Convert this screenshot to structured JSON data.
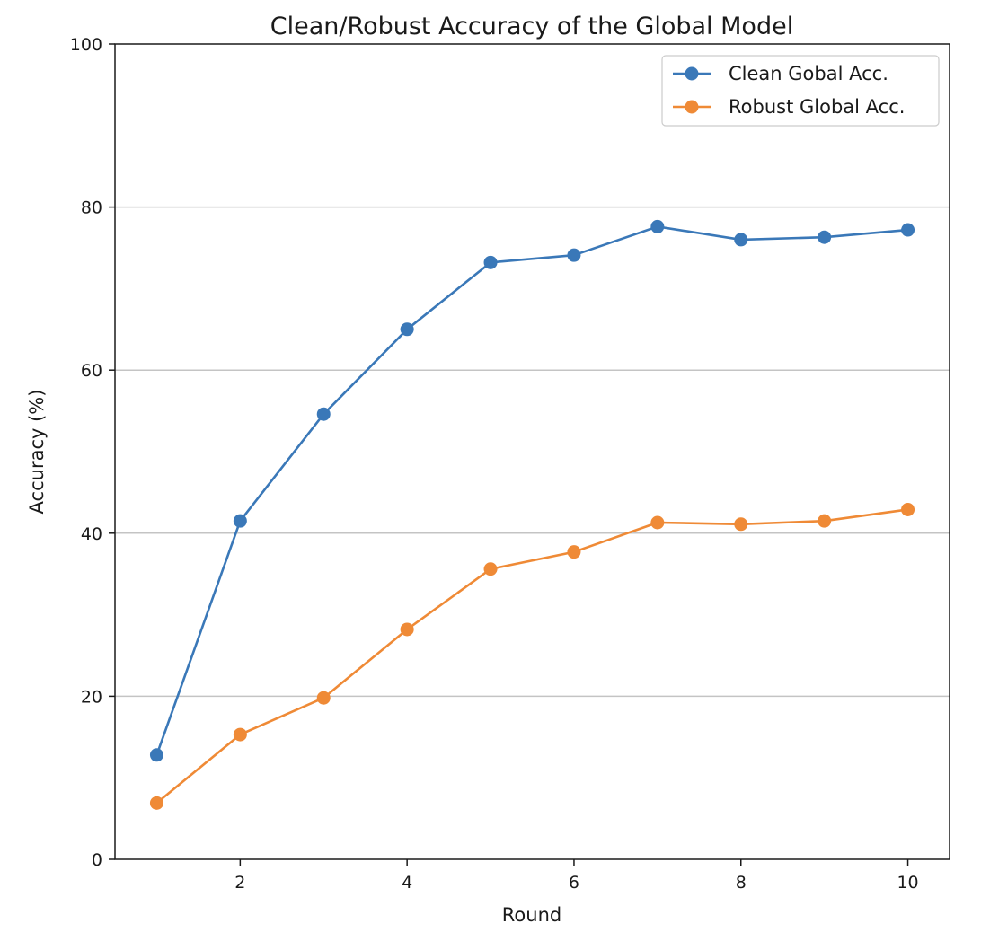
{
  "chart_data": {
    "type": "line",
    "title": "Clean/Robust Accuracy of the Global Model",
    "xlabel": "Round",
    "ylabel": "Accuracy (%)",
    "x": [
      1,
      2,
      3,
      4,
      5,
      6,
      7,
      8,
      9,
      10
    ],
    "xlim": [
      0.5,
      10.5
    ],
    "ylim": [
      0,
      100
    ],
    "xticks": [
      2,
      4,
      6,
      8,
      10
    ],
    "yticks": [
      0,
      20,
      40,
      60,
      80,
      100
    ],
    "grid": "horizontal",
    "legend_position": "top-right",
    "series": [
      {
        "name": "Clean Gobal Acc.",
        "color": "#3a78b8",
        "marker": "circle",
        "values": [
          12.8,
          41.5,
          54.6,
          65.0,
          73.2,
          74.1,
          77.6,
          76.0,
          76.3,
          77.2
        ]
      },
      {
        "name": "Robust Global Acc.",
        "color": "#ef8a36",
        "marker": "circle",
        "values": [
          6.9,
          15.3,
          19.8,
          28.2,
          35.6,
          37.7,
          41.3,
          41.1,
          41.5,
          42.9
        ]
      }
    ]
  }
}
